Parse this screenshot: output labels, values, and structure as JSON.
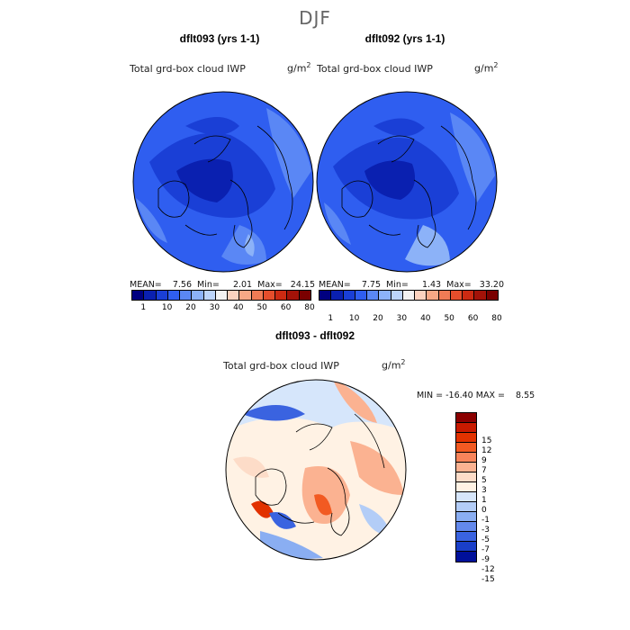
{
  "season": "DJF",
  "panels": [
    {
      "title": "dflt093 (yrs 1-1)",
      "variable": "Total grd-box cloud IWP",
      "units": "g/m",
      "units_exp": "2",
      "stats": "MEAN=    7.56  Min=     2.01  Max=   24.15"
    },
    {
      "title": "dflt092 (yrs 1-1)",
      "variable": "Total grd-box cloud IWP",
      "units": "g/m",
      "units_exp": "2",
      "stats": "MEAN=    7.75  Min=     1.43  Max=   33.20"
    }
  ],
  "diff_panel": {
    "title": "dflt093 - dflt092",
    "variable": "Total grd-box cloud IWP",
    "units": "g/m",
    "units_exp": "2",
    "stats": "MIN = -16.40 MAX =    8.55"
  },
  "abs_colorbar": {
    "colors": [
      "#000080",
      "#0a20b0",
      "#1a3fd6",
      "#2f5ef0",
      "#5a87f5",
      "#8cb2f8",
      "#bcd4fa",
      "#f2f2f2",
      "#fbd2bf",
      "#f7a886",
      "#f07b55",
      "#e54e2c",
      "#cc2a12",
      "#a31208",
      "#7a0000"
    ],
    "labels": [
      "1",
      "10",
      "20",
      "30",
      "40",
      "50",
      "60",
      "80"
    ]
  },
  "diff_colorbar": {
    "colors": [
      "#8b0000",
      "#c81a00",
      "#e23200",
      "#f25a22",
      "#f8845a",
      "#fbb291",
      "#fddcc8",
      "#fff2e4",
      "#d6e6fb",
      "#b3cdf7",
      "#8aaef2",
      "#6389ec",
      "#3a63e0",
      "#1a3fc9",
      "#00109a"
    ],
    "labels": [
      "15",
      "12",
      "9",
      "7",
      "5",
      "3",
      "1",
      "0",
      "-1",
      "-3",
      "-5",
      "-7",
      "-9",
      "-12",
      "-15"
    ]
  }
}
